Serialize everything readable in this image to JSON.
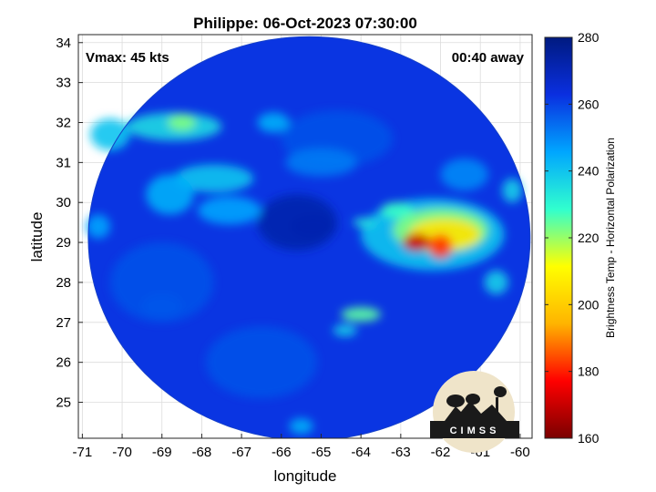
{
  "chart_data": {
    "type": "heatmap",
    "title": "Philippe: 06-Oct-2023 07:30:00",
    "xlabel": "longitude",
    "ylabel": "latitude",
    "xlim": [
      -71.1,
      -59.7
    ],
    "ylim": [
      24.1,
      34.2
    ],
    "xticks": [
      -71,
      -70,
      -69,
      -68,
      -67,
      -66,
      -65,
      -64,
      -63,
      -62,
      -61,
      -60
    ],
    "yticks": [
      25,
      26,
      27,
      28,
      29,
      30,
      31,
      32,
      33,
      34
    ],
    "grid": true,
    "swath_center": [
      -65.3,
      29.1
    ],
    "swath_radii_deg": [
      5.55,
      5.05
    ],
    "background_tb": 262,
    "colorbar": {
      "label": "Brightness Temp - Horizontal Polarization",
      "range": [
        160,
        280
      ],
      "ticks": [
        160,
        180,
        200,
        220,
        240,
        260,
        280
      ],
      "colors": [
        "#7a0000",
        "#ff0000",
        "#ffb400",
        "#ffff00",
        "#31ffce",
        "#00a6ff",
        "#0a2fe0",
        "#001a80"
      ]
    },
    "features": [
      {
        "lon": -64.6,
        "lat": 31.6,
        "tb": 258,
        "rx": 1.4,
        "ry": 0.7
      },
      {
        "lon": -65.2,
        "lat": 29.4,
        "tb": 268,
        "rx": 0.6,
        "ry": 0.3
      },
      {
        "lon": -62.2,
        "lat": 29.2,
        "tb": 240,
        "rx": 1.8,
        "ry": 0.9
      },
      {
        "lon": -62.0,
        "lat": 29.3,
        "tb": 222,
        "rx": 1.2,
        "ry": 0.55
      },
      {
        "lon": -61.9,
        "lat": 29.2,
        "tb": 205,
        "rx": 0.9,
        "ry": 0.4
      },
      {
        "lon": -62.6,
        "lat": 29.0,
        "tb": 170,
        "rx": 0.35,
        "ry": 0.22
      },
      {
        "lon": -62.0,
        "lat": 28.9,
        "tb": 182,
        "rx": 0.3,
        "ry": 0.3
      },
      {
        "lon": -63.1,
        "lat": 29.8,
        "tb": 228,
        "rx": 0.4,
        "ry": 0.2
      },
      {
        "lon": -63.9,
        "lat": 29.5,
        "tb": 234,
        "rx": 0.3,
        "ry": 0.12
      },
      {
        "lon": -60.6,
        "lat": 28.0,
        "tb": 238,
        "rx": 0.3,
        "ry": 0.3
      },
      {
        "lon": -60.2,
        "lat": 30.3,
        "tb": 238,
        "rx": 0.25,
        "ry": 0.3
      },
      {
        "lon": -64.0,
        "lat": 27.2,
        "tb": 225,
        "rx": 0.5,
        "ry": 0.18
      },
      {
        "lon": -64.4,
        "lat": 26.8,
        "tb": 238,
        "rx": 0.3,
        "ry": 0.15
      },
      {
        "lon": -68.7,
        "lat": 31.9,
        "tb": 236,
        "rx": 1.2,
        "ry": 0.35
      },
      {
        "lon": -70.3,
        "lat": 31.7,
        "tb": 240,
        "rx": 0.5,
        "ry": 0.4
      },
      {
        "lon": -68.5,
        "lat": 32.0,
        "tb": 222,
        "rx": 0.35,
        "ry": 0.2
      },
      {
        "lon": -66.2,
        "lat": 32.0,
        "tb": 244,
        "rx": 0.4,
        "ry": 0.25
      },
      {
        "lon": -67.7,
        "lat": 30.6,
        "tb": 240,
        "rx": 1.0,
        "ry": 0.35
      },
      {
        "lon": -68.8,
        "lat": 30.2,
        "tb": 244,
        "rx": 0.6,
        "ry": 0.5
      },
      {
        "lon": -67.3,
        "lat": 29.8,
        "tb": 246,
        "rx": 0.8,
        "ry": 0.35
      },
      {
        "lon": -70.6,
        "lat": 29.4,
        "tb": 246,
        "rx": 0.3,
        "ry": 0.3
      },
      {
        "lon": -69.0,
        "lat": 27.4,
        "tb": 250,
        "rx": 0.5,
        "ry": 0.3
      },
      {
        "lon": -65.0,
        "lat": 31.0,
        "tb": 252,
        "rx": 0.9,
        "ry": 0.35
      },
      {
        "lon": -65.5,
        "lat": 24.4,
        "tb": 244,
        "rx": 0.3,
        "ry": 0.2
      },
      {
        "lon": -61.4,
        "lat": 30.7,
        "tb": 250,
        "rx": 0.6,
        "ry": 0.4
      },
      {
        "lon": -65.6,
        "lat": 29.5,
        "tb": 272,
        "rx": 1.0,
        "ry": 0.7
      },
      {
        "lon": -69.0,
        "lat": 28.0,
        "tb": 258,
        "rx": 1.3,
        "ry": 1.0
      },
      {
        "lon": -66.5,
        "lat": 26.0,
        "tb": 258,
        "rx": 1.4,
        "ry": 0.9
      }
    ],
    "annotations": {
      "left": "Vmax: 45 kts",
      "right": "00:40 away"
    }
  },
  "logo": {
    "text": "CIMSS"
  }
}
